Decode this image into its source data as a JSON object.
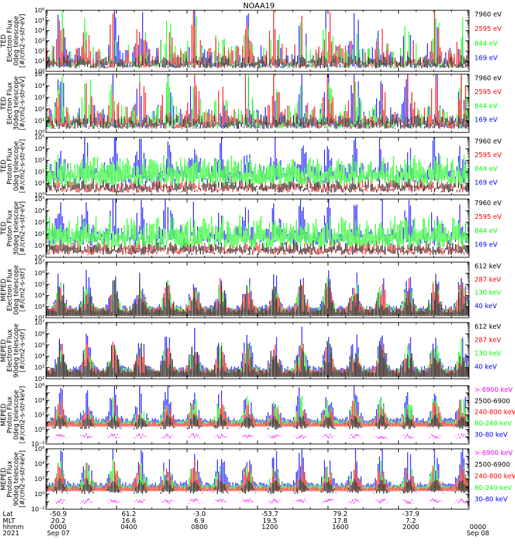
{
  "title": "NOAA19",
  "colors": {
    "black": "#000000",
    "red": "#ff0000",
    "green": "#00ff00",
    "blue": "#0000ff",
    "magenta": "#ff00ff"
  },
  "chart_data": [
    {
      "type": "line",
      "instrument": "TED",
      "ylabel": [
        "TED",
        "Electron Flux",
        "0deg telescope",
        "[#/cm2-s-str-eV]"
      ],
      "yscale": "log",
      "ylim_exp": [
        0,
        6
      ],
      "series": [
        {
          "name": "7960 eV",
          "color": "black"
        },
        {
          "name": "2595 eV",
          "color": "red"
        },
        {
          "name": "844 eV",
          "color": "green"
        },
        {
          "name": "169 eV",
          "color": "blue"
        }
      ]
    },
    {
      "type": "line",
      "instrument": "TED",
      "ylabel": [
        "TED",
        "Electron Flux",
        "30deg telescope",
        "[#/cm2-s-str-eV]"
      ],
      "yscale": "log",
      "ylim_exp": [
        0,
        5
      ],
      "series": [
        {
          "name": "7960 eV",
          "color": "black"
        },
        {
          "name": "2595 eV",
          "color": "red"
        },
        {
          "name": "844 eV",
          "color": "green"
        },
        {
          "name": "169 eV",
          "color": "blue"
        }
      ]
    },
    {
      "type": "line",
      "instrument": "TED",
      "ylabel": [
        "TED",
        "Proton Flux",
        "0deg telescope",
        "[#/cm2-s-str-eV]"
      ],
      "yscale": "log",
      "ylim_exp": [
        0,
        5
      ],
      "series": [
        {
          "name": "7960 eV",
          "color": "black"
        },
        {
          "name": "2595 eV",
          "color": "red"
        },
        {
          "name": "844 eV",
          "color": "green"
        },
        {
          "name": "169 eV",
          "color": "blue"
        }
      ]
    },
    {
      "type": "line",
      "instrument": "TED",
      "ylabel": [
        "TED",
        "Proton Flux",
        "30deg telescope",
        "[#/cm2-s-str-eV]"
      ],
      "yscale": "log",
      "ylim_exp": [
        0,
        5
      ],
      "series": [
        {
          "name": "7960 eV",
          "color": "black"
        },
        {
          "name": "2595 eV",
          "color": "red"
        },
        {
          "name": "844 eV",
          "color": "green"
        },
        {
          "name": "169 eV",
          "color": "blue"
        }
      ]
    },
    {
      "type": "line",
      "instrument": "MEPED",
      "ylabel": [
        "MEPED",
        "Electron Flux",
        "0deg telescope",
        "[#/cm2-s-str]"
      ],
      "yscale": "log",
      "ylim_exp": [
        2,
        7
      ],
      "series": [
        {
          "name": "612 keV",
          "color": "black"
        },
        {
          "name": "287 keV",
          "color": "red"
        },
        {
          "name": "130 keV",
          "color": "green"
        },
        {
          "name": "40 keV",
          "color": "blue"
        }
      ]
    },
    {
      "type": "line",
      "instrument": "MEPED",
      "ylabel": [
        "MEPED",
        "Electron Flux",
        "90deg telescope",
        "[#/cm2-s-str]"
      ],
      "yscale": "log",
      "ylim_exp": [
        2,
        7
      ],
      "series": [
        {
          "name": "612 keV",
          "color": "black"
        },
        {
          "name": "287 keV",
          "color": "red"
        },
        {
          "name": "130 keV",
          "color": "green"
        },
        {
          "name": "40 keV",
          "color": "blue"
        }
      ]
    },
    {
      "type": "line",
      "instrument": "MEPED",
      "ylabel": [
        "MEPED",
        "Proton Flux",
        "0deg telescope",
        "[#/cm2-s-str-keV]"
      ],
      "yscale": "log",
      "ylim_exp": [
        -2,
        6
      ],
      "series": [
        {
          "name": "> 6900 keV",
          "color": "magenta"
        },
        {
          "name": "2500-6900",
          "color": "black"
        },
        {
          "name": "240-800 keV",
          "color": "red"
        },
        {
          "name": "80-240 keV",
          "color": "green"
        },
        {
          "name": "30-80 keV",
          "color": "blue"
        }
      ]
    },
    {
      "type": "line",
      "instrument": "MEPED",
      "ylabel": [
        "MEPED",
        "Proton Flux",
        "90deg telescope",
        "[#/cm2-s-str-keV]"
      ],
      "yscale": "log",
      "ylim_exp": [
        -2,
        6
      ],
      "series": [
        {
          "name": "> 6900 keV",
          "color": "magenta"
        },
        {
          "name": "2500-6900",
          "color": "black"
        },
        {
          "name": "240-800 keV",
          "color": "red"
        },
        {
          "name": "80-240 keV",
          "color": "green"
        },
        {
          "name": "30-80 keV",
          "color": "blue"
        }
      ]
    }
  ],
  "x_axis": {
    "row_labels": [
      "Lat",
      "MLT",
      "hhmm",
      "2021"
    ],
    "ticks": [
      {
        "lat": "-50.9",
        "mlt": "20.2",
        "hhmm": "0000",
        "date": "Sep 07"
      },
      {
        "lat": "61.2",
        "mlt": "16.6",
        "hhmm": "0400",
        "date": ""
      },
      {
        "lat": "-3.0",
        "mlt": "6.9",
        "hhmm": "0800",
        "date": ""
      },
      {
        "lat": "-53.7",
        "mlt": "19.5",
        "hhmm": "1200",
        "date": ""
      },
      {
        "lat": "79.2",
        "mlt": "17.8",
        "hhmm": "1600",
        "date": ""
      },
      {
        "lat": "-37.9",
        "mlt": "7.2",
        "hhmm": "2000",
        "date": ""
      },
      {
        "lat": "",
        "mlt": "",
        "hhmm": "0000",
        "date": "Sep 08"
      }
    ]
  }
}
